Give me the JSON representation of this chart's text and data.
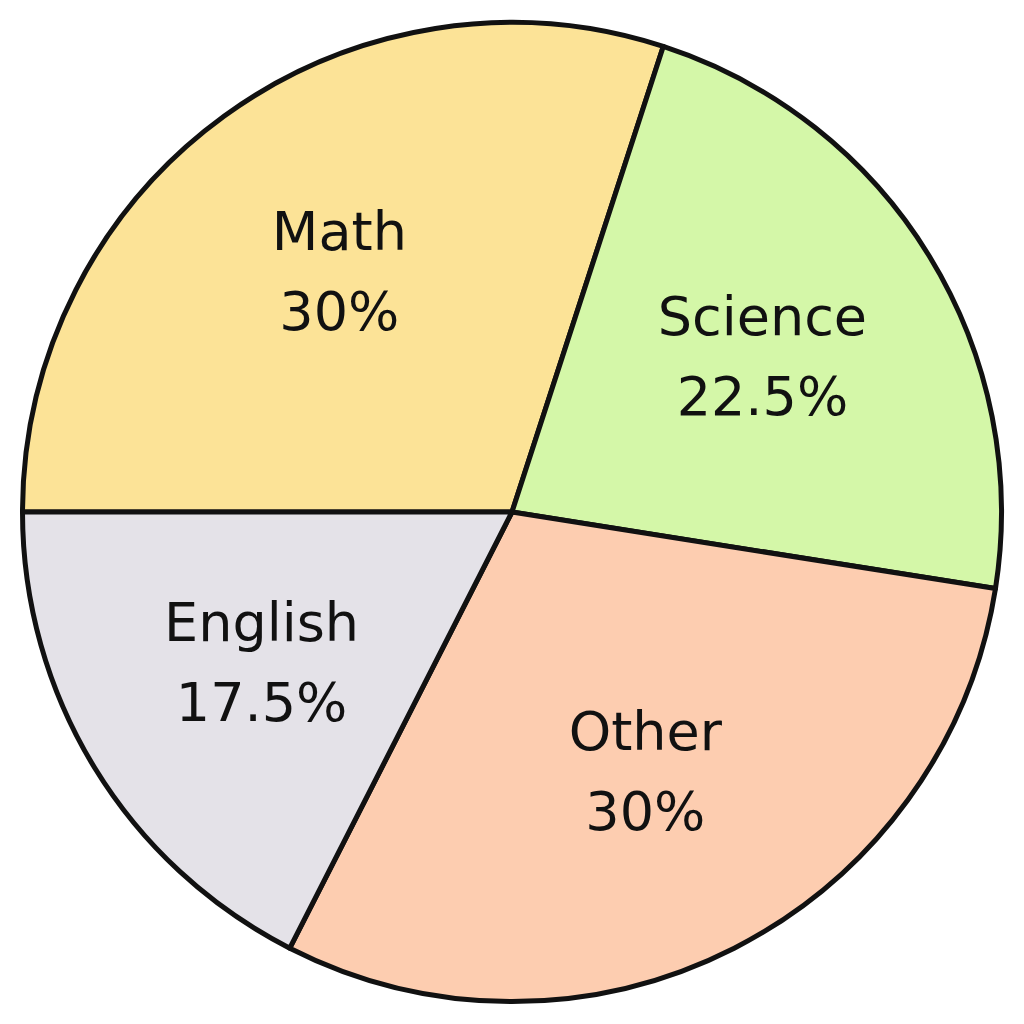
{
  "chart_data": {
    "type": "pie",
    "categories": [
      "Math",
      "Science",
      "Other",
      "English"
    ],
    "values": [
      30,
      22.5,
      30,
      17.5
    ],
    "colors": [
      "#fce397",
      "#d4f7a8",
      "#fdcdb0",
      "#e4e2e8"
    ],
    "value_labels": [
      "30%",
      "22.5%",
      "30%",
      "17.5%"
    ],
    "legend": false
  }
}
